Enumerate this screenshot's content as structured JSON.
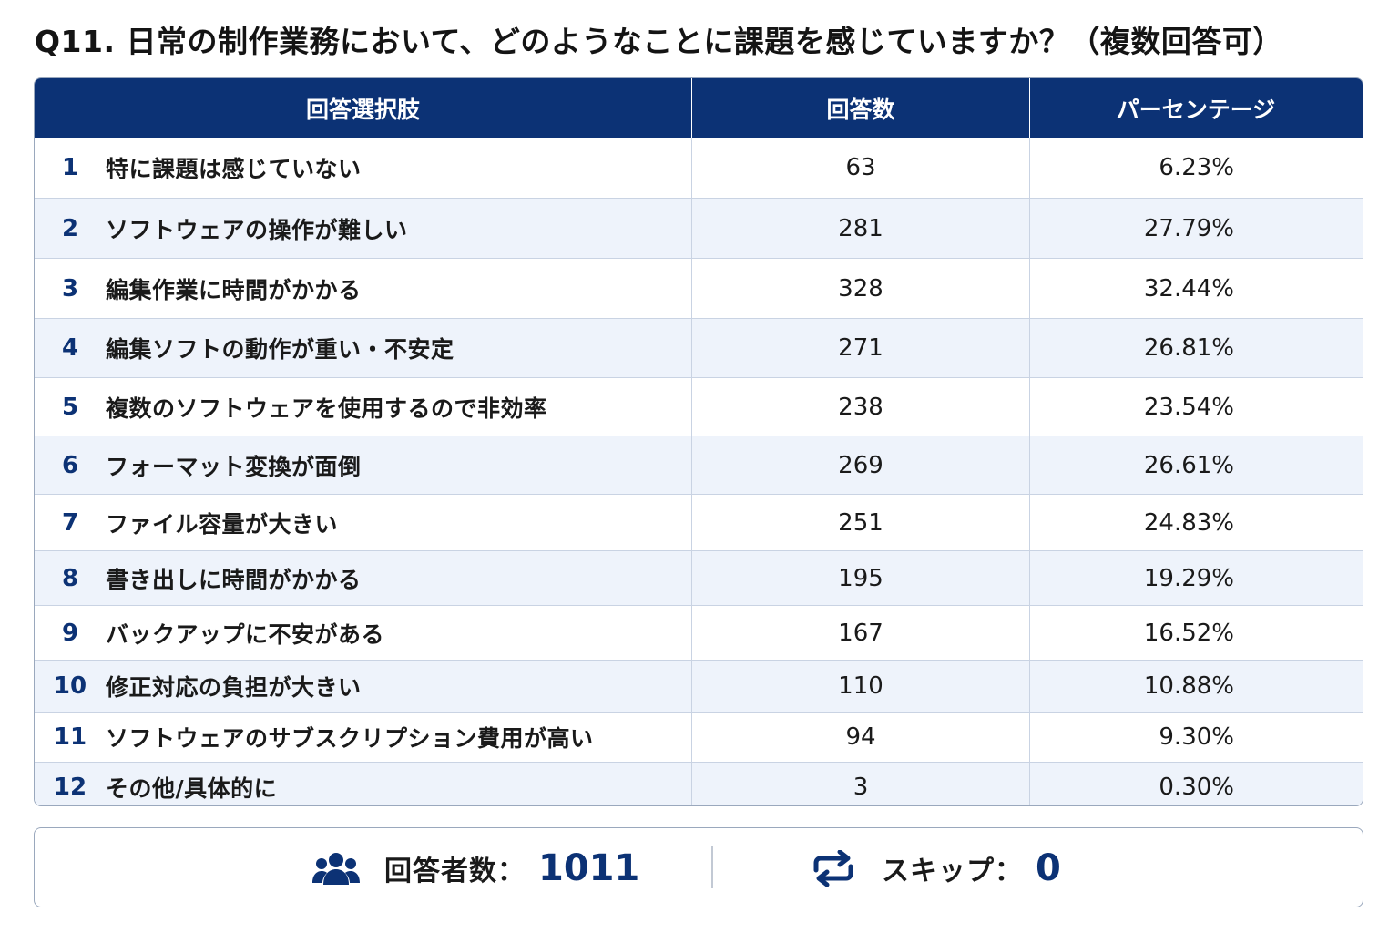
{
  "title": "Q11. 日常の制作業務において、どのようなことに課題を感じていますか？（複数回答可）",
  "chart_data": {
    "type": "table",
    "columns": [
      "回答選択肢",
      "回答数",
      "パーセンテージ"
    ],
    "rows": [
      {
        "no": "1",
        "option": "特に課題は感じていない",
        "count": "63",
        "percent": "6.23%"
      },
      {
        "no": "2",
        "option": "ソフトウェアの操作が難しい",
        "count": "281",
        "percent": "27.79%"
      },
      {
        "no": "3",
        "option": "編集作業に時間がかかる",
        "count": "328",
        "percent": "32.44%"
      },
      {
        "no": "4",
        "option": "編集ソフトの動作が重い・不安定",
        "count": "271",
        "percent": "26.81%"
      },
      {
        "no": "5",
        "option": "複数のソフトウェアを使用するので非効率",
        "count": "238",
        "percent": "23.54%"
      },
      {
        "no": "6",
        "option": "フォーマット変換が面倒",
        "count": "269",
        "percent": "26.61%"
      },
      {
        "no": "7",
        "option": "ファイル容量が大きい",
        "count": "251",
        "percent": "24.83%"
      },
      {
        "no": "8",
        "option": "書き出しに時間がかかる",
        "count": "195",
        "percent": "19.29%"
      },
      {
        "no": "9",
        "option": "バックアップに不安がある",
        "count": "167",
        "percent": "16.52%"
      },
      {
        "no": "10",
        "option": "修正対応の負担が大きい",
        "count": "110",
        "percent": "10.88%"
      },
      {
        "no": "11",
        "option": "ソフトウェアのサブスクリプション費用が高い",
        "count": "94",
        "percent": "9.30%"
      },
      {
        "no": "12",
        "option": "その他/具体的に",
        "count": "3",
        "percent": "0.30%"
      }
    ]
  },
  "footer": {
    "respondents_label": "回答者数：",
    "respondents_value": "1011",
    "skip_label": "スキップ：",
    "skip_value": "0",
    "respondents_icon": "users-icon",
    "skip_icon": "repeat-icon"
  },
  "colors": {
    "header_bg": "#0c3275",
    "accent": "#0c3275",
    "alt_row": "#eef3fb"
  }
}
